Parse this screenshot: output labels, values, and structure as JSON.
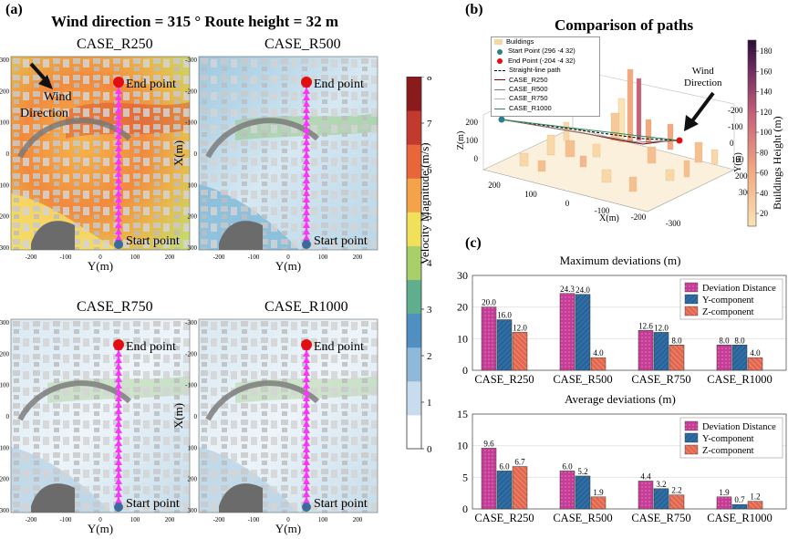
{
  "panel_a": {
    "label": "(a)",
    "heading": "Wind direction = 315 °  Route height = 32 m",
    "cases": [
      {
        "title": "CASE_R250",
        "flow": "high"
      },
      {
        "title": "CASE_R500",
        "flow": "mid"
      },
      {
        "title": "CASE_R750",
        "flow": "low"
      },
      {
        "title": "CASE_R1000",
        "flow": "low"
      }
    ],
    "xlabel": "Y(m)",
    "ylabel": "X(m)",
    "xticks": [
      "-200",
      "-100",
      "0",
      "100",
      "200"
    ],
    "yticks": [
      "-300",
      "-200",
      "-100",
      "0",
      "100",
      "200",
      "300"
    ],
    "end_label": "End point",
    "start_label": "Start point",
    "wind_label_line1": "Wind",
    "wind_label_line2": "Direction",
    "colorbar": {
      "label": "Velocity Magnitude (m/s)",
      "ticks": [
        "8",
        "7",
        "6",
        "5",
        "4",
        "3",
        "2",
        "1",
        "0"
      ],
      "colors": [
        "#ffffff",
        "#c9dced",
        "#8fb9da",
        "#4f8fc1",
        "#5fae8e",
        "#a8cf6a",
        "#f0e05a",
        "#f4a348",
        "#e8663a",
        "#c23a2e",
        "#8b1a1a"
      ]
    },
    "colors": {
      "route": "#ff33ff",
      "end_marker": "#e01010",
      "start_marker": "#3b6b9a"
    }
  },
  "panel_b": {
    "label": "(b)",
    "title": "Comparison of paths",
    "legend": [
      {
        "label": "Buildings",
        "color": "#f7d7a0"
      },
      {
        "label": "Start Point (296   -4   32)",
        "color": "#2a7f88"
      },
      {
        "label": "End Point (-204   -4   32)",
        "color": "#e01010"
      },
      {
        "label": "Straight-line path",
        "color": "#000000"
      },
      {
        "label": "CASE_R250",
        "color": "#8b0000"
      },
      {
        "label": "CASE_R500",
        "color": "#7a7a7a"
      },
      {
        "label": "CASE_R750",
        "color": "#b0b0b0"
      },
      {
        "label": "CASE_R1000",
        "color": "#2e8b57"
      }
    ],
    "z_label": "Z(m)",
    "z_ticks": [
      "200",
      "100",
      "0"
    ],
    "x_label": "X(m)",
    "x_ticks": [
      "200",
      "100",
      "0",
      "-100",
      "-200",
      "-300"
    ],
    "y_label": "Y(m)",
    "y_ticks": [
      "-200",
      "-100",
      "0",
      "100",
      "200",
      "300"
    ],
    "wind_line1": "Wind",
    "wind_line2": "Direction",
    "colorbar": {
      "label": "Buildings Height (m)",
      "ticks": [
        "180",
        "160",
        "140",
        "120",
        "100",
        "80",
        "60",
        "40",
        "20"
      ]
    }
  },
  "panel_c": {
    "label": "(c)"
  },
  "chart_data": [
    {
      "type": "bar",
      "title": "Maximum deviations (m)",
      "categories": [
        "CASE_R250",
        "CASE_R500",
        "CASE_R750",
        "CASE_R1000"
      ],
      "series": [
        {
          "name": "Deviation Distance",
          "values": [
            20.0,
            24.3,
            12.6,
            8.0
          ],
          "labels": [
            "20.0",
            "24.3",
            "12.6",
            "8.0"
          ],
          "color": "#c43c95"
        },
        {
          "name": "Y-component",
          "values": [
            16.0,
            24.0,
            12.0,
            8.0
          ],
          "labels": [
            "16.0",
            "24.0",
            "12.0",
            "8.0"
          ],
          "color": "#2f6ea5"
        },
        {
          "name": "Z-component",
          "values": [
            12.0,
            4.0,
            8.0,
            4.0
          ],
          "labels": [
            "12.0",
            "4.0",
            "8.0",
            "4.0"
          ],
          "color": "#e2674e"
        }
      ],
      "ylim": [
        0,
        30
      ],
      "yticks": [
        0,
        10,
        20,
        30
      ],
      "legend": "top-right"
    },
    {
      "type": "bar",
      "title": "Average deviations (m)",
      "categories": [
        "CASE_R250",
        "CASE_R500",
        "CASE_R750",
        "CASE_R1000"
      ],
      "series": [
        {
          "name": "Deviation Distance",
          "values": [
            9.6,
            6.0,
            4.4,
            1.9
          ],
          "labels": [
            "9.6",
            "6.0",
            "4.4",
            "1.9"
          ],
          "color": "#c43c95"
        },
        {
          "name": "Y-component",
          "values": [
            6.0,
            5.2,
            3.2,
            0.7
          ],
          "labels": [
            "6.0",
            "5.2",
            "3.2",
            "0.7"
          ],
          "color": "#2f6ea5"
        },
        {
          "name": "Z-component",
          "values": [
            6.7,
            1.9,
            2.2,
            1.2
          ],
          "labels": [
            "6.7",
            "1.9",
            "2.2",
            "1.2"
          ],
          "color": "#e2674e"
        }
      ],
      "ylim": [
        0,
        15
      ],
      "yticks": [
        0,
        5,
        10,
        15
      ],
      "legend": "top-right"
    }
  ]
}
